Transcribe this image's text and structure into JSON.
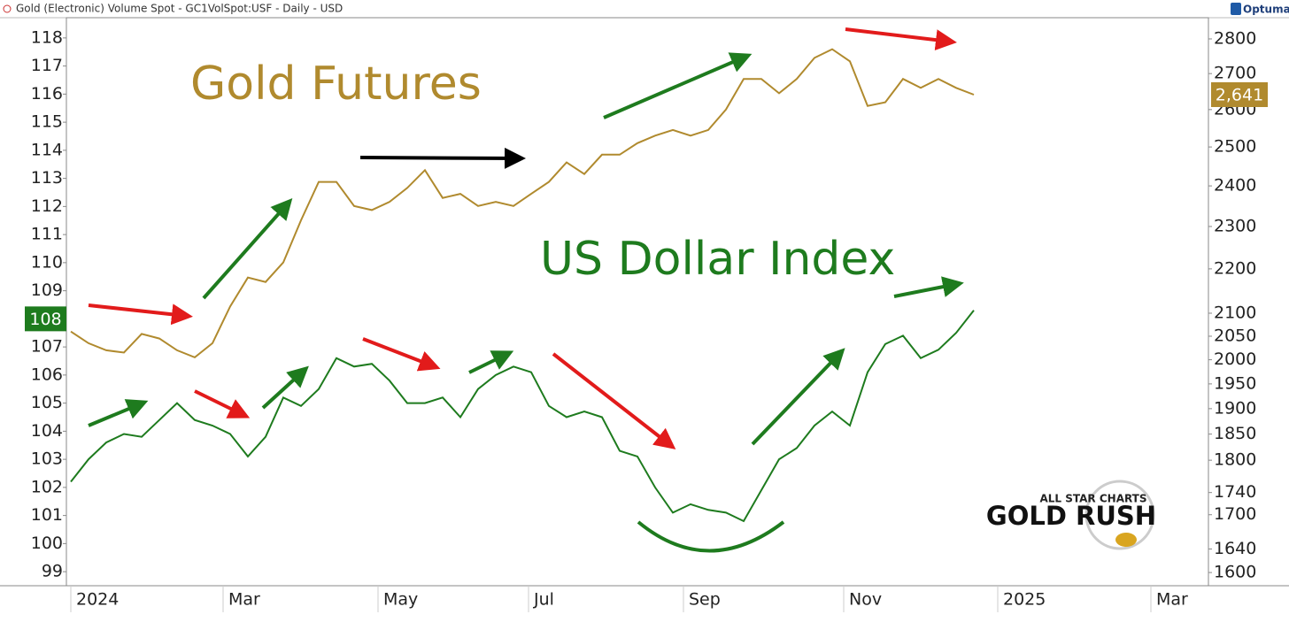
{
  "chart_data": {
    "type": "line",
    "title": "Gold (Electronic) Volume Spot - GC1VolSpot:USF - Daily - USD",
    "brand": "Optuma",
    "logo": {
      "top": "ALL STAR CHARTS",
      "main": "GOLD RUSH"
    },
    "xlim": [
      -0.25,
      64.25
    ],
    "xticks": [
      {
        "value": 0,
        "label": "2024"
      },
      {
        "value": 8.6,
        "label": "Mar"
      },
      {
        "value": 17.35,
        "label": "May"
      },
      {
        "value": 25.85,
        "label": "Jul"
      },
      {
        "value": 34.6,
        "label": "Sep"
      },
      {
        "value": 43.65,
        "label": "Nov"
      },
      {
        "value": 52.35,
        "label": "2025"
      },
      {
        "value": 61,
        "label": "Mar"
      }
    ],
    "ylim": [
      98.5,
      118.72
    ],
    "yticks": [
      99,
      100,
      101,
      102,
      103,
      104,
      105,
      106,
      107,
      108,
      109,
      110,
      111,
      112,
      113,
      114,
      115,
      116,
      117,
      118
    ],
    "y2lim": [
      1578,
      2863
    ],
    "y2log": true,
    "y2ticks": [
      1600,
      1640,
      1700,
      1740,
      1800,
      1850,
      1900,
      1950,
      2000,
      2050,
      2100,
      2200,
      2300,
      2400,
      2500,
      2600,
      2700,
      2800
    ],
    "series": [
      {
        "name": "Gold Futures",
        "color": "#b08a2e",
        "axis": "y2",
        "values": [
          2060,
          2035,
          2020,
          2015,
          2055,
          2045,
          2020,
          2005,
          2035,
          2115,
          2180,
          2170,
          2215,
          2315,
          2410,
          2410,
          2350,
          2340,
          2360,
          2395,
          2440,
          2370,
          2380,
          2350,
          2360,
          2350,
          2380,
          2410,
          2460,
          2430,
          2480,
          2480,
          2510,
          2530,
          2545,
          2530,
          2545,
          2600,
          2685,
          2685,
          2645,
          2685,
          2745,
          2770,
          2735,
          2610,
          2620,
          2685,
          2660,
          2685,
          2660,
          2641
        ],
        "last_label": {
          "value": 2641,
          "label": "2,641"
        }
      },
      {
        "name": "US Dollar Index",
        "color": "#1e7b1e",
        "values": [
          102.2,
          103.0,
          103.6,
          103.9,
          103.8,
          104.4,
          105.0,
          104.4,
          104.2,
          103.9,
          103.1,
          103.8,
          105.2,
          104.9,
          105.5,
          106.6,
          106.3,
          106.4,
          105.8,
          105.0,
          105.0,
          105.2,
          104.5,
          105.5,
          106.0,
          106.3,
          106.1,
          104.9,
          104.5,
          104.7,
          104.5,
          103.3,
          103.1,
          102.0,
          101.1,
          101.4,
          101.2,
          101.1,
          100.8,
          101.9,
          103.0,
          103.4,
          104.2,
          104.7,
          104.2,
          106.1,
          107.1,
          107.4,
          106.6,
          106.9,
          107.5,
          108.3
        ],
        "last_label": 108
      }
    ]
  }
}
